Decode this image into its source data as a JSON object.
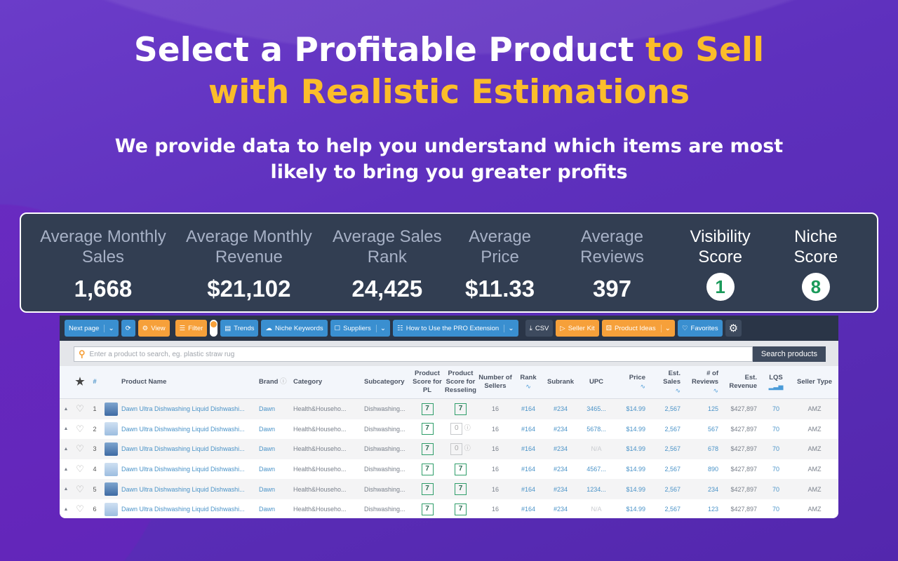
{
  "headline": {
    "line1": "Select a Profitable Product ",
    "line1_accent": "to Sell",
    "line2_accent": "with Realistic Estimations"
  },
  "subtitle": "We provide data to help you understand which items are most likely to bring you greater profits",
  "stats": [
    {
      "label": "Average Monthly Sales",
      "value": "1,668"
    },
    {
      "label": "Average Monthly Revenue",
      "value": "$21,102"
    },
    {
      "label": "Average Sales Rank",
      "value": "24,425"
    },
    {
      "label": "Average Price",
      "value": "$11.33"
    },
    {
      "label": "Average Reviews",
      "value": "397"
    },
    {
      "label": "Visibility Score",
      "value": "1"
    },
    {
      "label": "Niche Score",
      "value": "8"
    }
  ],
  "toolbar": {
    "next_page": "Next page",
    "view": "View",
    "filter": "Filter",
    "trends": "Trends",
    "niche_keywords": "Niche Keywords",
    "suppliers": "Suppliers",
    "how_to": "How to Use the PRO Extension",
    "csv": "CSV",
    "seller_kit": "Seller Kit",
    "product_ideas": "Product Ideas",
    "favorites": "Favorites"
  },
  "search": {
    "placeholder": "Enter a product to search, eg. plastic straw rug",
    "button": "Search products"
  },
  "columns": {
    "num": "#",
    "name": "Product Name",
    "brand": "Brand",
    "category": "Category",
    "subcategory": "Subcategory",
    "pl": "Product Score for PL",
    "resell": "Product Score for Resseling",
    "sellers": "Number of Sellers",
    "rank": "Rank",
    "subrank": "Subrank",
    "upc": "UPC",
    "price": "Price",
    "sales": "Est. Sales",
    "reviews": "# of Reviews",
    "revenue": "Est. Revenue",
    "lqs": "LQS",
    "seller_type": "Seller Type"
  },
  "rows": [
    {
      "n": "1",
      "name": "Dawn Ultra Dishwashing Liquid Dishwashi...",
      "brand": "Dawn",
      "category": "Health&Househo...",
      "subcategory": "Dishwashing...",
      "pl": "7",
      "resell": "7",
      "sellers": "16",
      "rank": "#164",
      "subrank": "#234",
      "upc": "3465...",
      "price": "$14.99",
      "sales": "2,567",
      "reviews": "125",
      "revenue": "$427,897",
      "lqs": "70",
      "type": "AMZ"
    },
    {
      "n": "2",
      "name": "Dawn Ultra Dishwashing Liquid Dishwashi...",
      "brand": "Dawn",
      "category": "Health&Househo...",
      "subcategory": "Dishwashing...",
      "pl": "7",
      "resell": "0",
      "sellers": "16",
      "rank": "#164",
      "subrank": "#234",
      "upc": "5678...",
      "price": "$14.99",
      "sales": "2,567",
      "reviews": "567",
      "revenue": "$427,897",
      "lqs": "70",
      "type": "AMZ"
    },
    {
      "n": "3",
      "name": "Dawn Ultra Dishwashing Liquid Dishwashi...",
      "brand": "Dawn",
      "category": "Health&Househo...",
      "subcategory": "Dishwashing...",
      "pl": "7",
      "resell": "0",
      "sellers": "16",
      "rank": "#164",
      "subrank": "#234",
      "upc": "N/A",
      "price": "$14.99",
      "sales": "2,567",
      "reviews": "678",
      "revenue": "$427,897",
      "lqs": "70",
      "type": "AMZ"
    },
    {
      "n": "4",
      "name": "Dawn Ultra Dishwashing Liquid Dishwashi...",
      "brand": "Dawn",
      "category": "Health&Househo...",
      "subcategory": "Dishwashing...",
      "pl": "7",
      "resell": "7",
      "sellers": "16",
      "rank": "#164",
      "subrank": "#234",
      "upc": "4567...",
      "price": "$14.99",
      "sales": "2,567",
      "reviews": "890",
      "revenue": "$427,897",
      "lqs": "70",
      "type": "AMZ"
    },
    {
      "n": "5",
      "name": "Dawn Ultra Dishwashing Liquid Dishwashi...",
      "brand": "Dawn",
      "category": "Health&Househo...",
      "subcategory": "Dishwashing...",
      "pl": "7",
      "resell": "7",
      "sellers": "16",
      "rank": "#164",
      "subrank": "#234",
      "upc": "1234...",
      "price": "$14.99",
      "sales": "2,567",
      "reviews": "234",
      "revenue": "$427,897",
      "lqs": "70",
      "type": "AMZ"
    },
    {
      "n": "6",
      "name": "Dawn Ultra Dishwashing Liquid Dishwashi...",
      "brand": "Dawn",
      "category": "Health&Househo...",
      "subcategory": "Dishwashing...",
      "pl": "7",
      "resell": "7",
      "sellers": "16",
      "rank": "#164",
      "subrank": "#234",
      "upc": "N/A",
      "price": "$14.99",
      "sales": "2,567",
      "reviews": "123",
      "revenue": "$427,897",
      "lqs": "70",
      "type": "AMZ"
    }
  ]
}
